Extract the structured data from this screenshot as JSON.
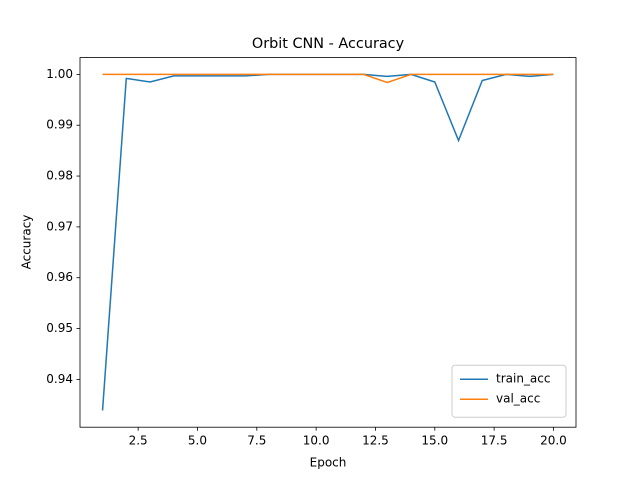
{
  "chart_data": {
    "type": "line",
    "title": "Orbit CNN - Accuracy",
    "x_label": "Epoch",
    "y_label": "Accuracy",
    "x": [
      1,
      2,
      3,
      4,
      5,
      6,
      7,
      8,
      9,
      10,
      11,
      12,
      13,
      14,
      15,
      16,
      17,
      18,
      19,
      20
    ],
    "series": [
      {
        "name": "train_acc",
        "color": "#1f77b4",
        "values": [
          0.9339,
          0.9992,
          0.9985,
          0.9997,
          0.9997,
          0.9997,
          0.9997,
          1.0,
          1.0,
          1.0,
          1.0,
          1.0,
          0.9996,
          1.0,
          0.9985,
          0.987,
          0.9988,
          1.0,
          0.9996,
          1.0
        ]
      },
      {
        "name": "val_acc",
        "color": "#ff7f0e",
        "values": [
          1.0,
          1.0,
          1.0,
          1.0,
          1.0,
          1.0,
          1.0,
          1.0,
          1.0,
          1.0,
          1.0,
          1.0,
          0.9984,
          1.0,
          1.0,
          1.0,
          1.0,
          1.0,
          1.0,
          1.0
        ]
      }
    ],
    "xlim": [
      0.05,
      20.95
    ],
    "xticks": [
      {
        "value": 2.5,
        "label": "2.5"
      },
      {
        "value": 5,
        "label": "5.0"
      },
      {
        "value": 7.5,
        "label": "7.5"
      },
      {
        "value": 10,
        "label": "10.0"
      },
      {
        "value": 12.5,
        "label": "12.5"
      },
      {
        "value": 15,
        "label": "15.0"
      },
      {
        "value": 17.5,
        "label": "17.5"
      },
      {
        "value": 20,
        "label": "20.0"
      }
    ],
    "ylim": [
      0.9306,
      1.0033
    ],
    "yticks": [
      0.94,
      0.95,
      0.96,
      0.97,
      0.98,
      0.99,
      {
        "value": 1.0,
        "label": "1.00"
      }
    ],
    "legend": "lower right",
    "grid": false
  }
}
